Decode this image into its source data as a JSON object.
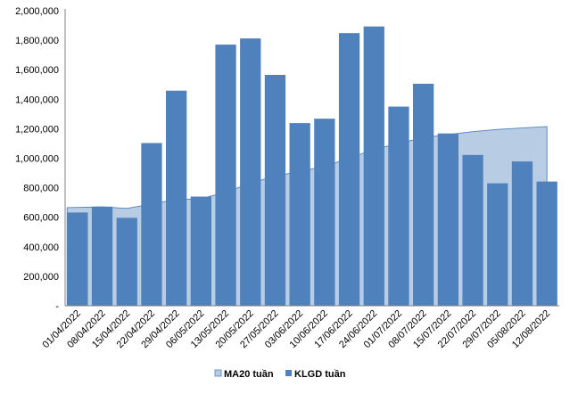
{
  "chart_data": {
    "type": "bar",
    "title": "",
    "xlabel": "",
    "ylabel": "",
    "ylim": [
      0,
      2000000
    ],
    "y_ticks": [
      {
        "value": 0,
        "label": "-"
      },
      {
        "value": 200000,
        "label": "200,000"
      },
      {
        "value": 400000,
        "label": "400,000"
      },
      {
        "value": 600000,
        "label": "600,000"
      },
      {
        "value": 800000,
        "label": "800,000"
      },
      {
        "value": 1000000,
        "label": "1,000,000"
      },
      {
        "value": 1200000,
        "label": "1,200,000"
      },
      {
        "value": 1400000,
        "label": "1,400,000"
      },
      {
        "value": 1600000,
        "label": "1,600,000"
      },
      {
        "value": 1800000,
        "label": "1,800,000"
      },
      {
        "value": 2000000,
        "label": "2,000,000"
      }
    ],
    "categories": [
      "01/04/2022",
      "08/04/2022",
      "15/04/2022",
      "22/04/2022",
      "29/04/2022",
      "06/05/2022",
      "13/05/2022",
      "20/05/2022",
      "27/05/2022",
      "03/06/2022",
      "10/06/2022",
      "17/06/2022",
      "24/06/2022",
      "01/07/2022",
      "08/07/2022",
      "15/07/2022",
      "22/07/2022",
      "29/07/2022",
      "05/08/2022",
      "12/08/2022"
    ],
    "grid": false,
    "legend_position": "bottom-center",
    "series": [
      {
        "name": "MA20 tuần",
        "kind": "area",
        "color": "#b8cce4",
        "stroke": "#4f81bd",
        "values": [
          665000,
          670000,
          660000,
          690000,
          720000,
          725000,
          770000,
          830000,
          880000,
          910000,
          945000,
          1000000,
          1060000,
          1100000,
          1140000,
          1160000,
          1180000,
          1195000,
          1205000,
          1215000
        ]
      },
      {
        "name": "KLGD tuần",
        "kind": "bar",
        "color": "#4f81bd",
        "values": [
          632000,
          672000,
          596000,
          1103000,
          1458000,
          740000,
          1770000,
          1812000,
          1565000,
          1238000,
          1268000,
          1848000,
          1893000,
          1350000,
          1505000,
          1168000,
          1022000,
          830000,
          978000,
          842000
        ]
      }
    ]
  },
  "legend": {
    "items": [
      {
        "label": "MA20 tuần"
      },
      {
        "label": "KLGD tuần"
      }
    ]
  }
}
